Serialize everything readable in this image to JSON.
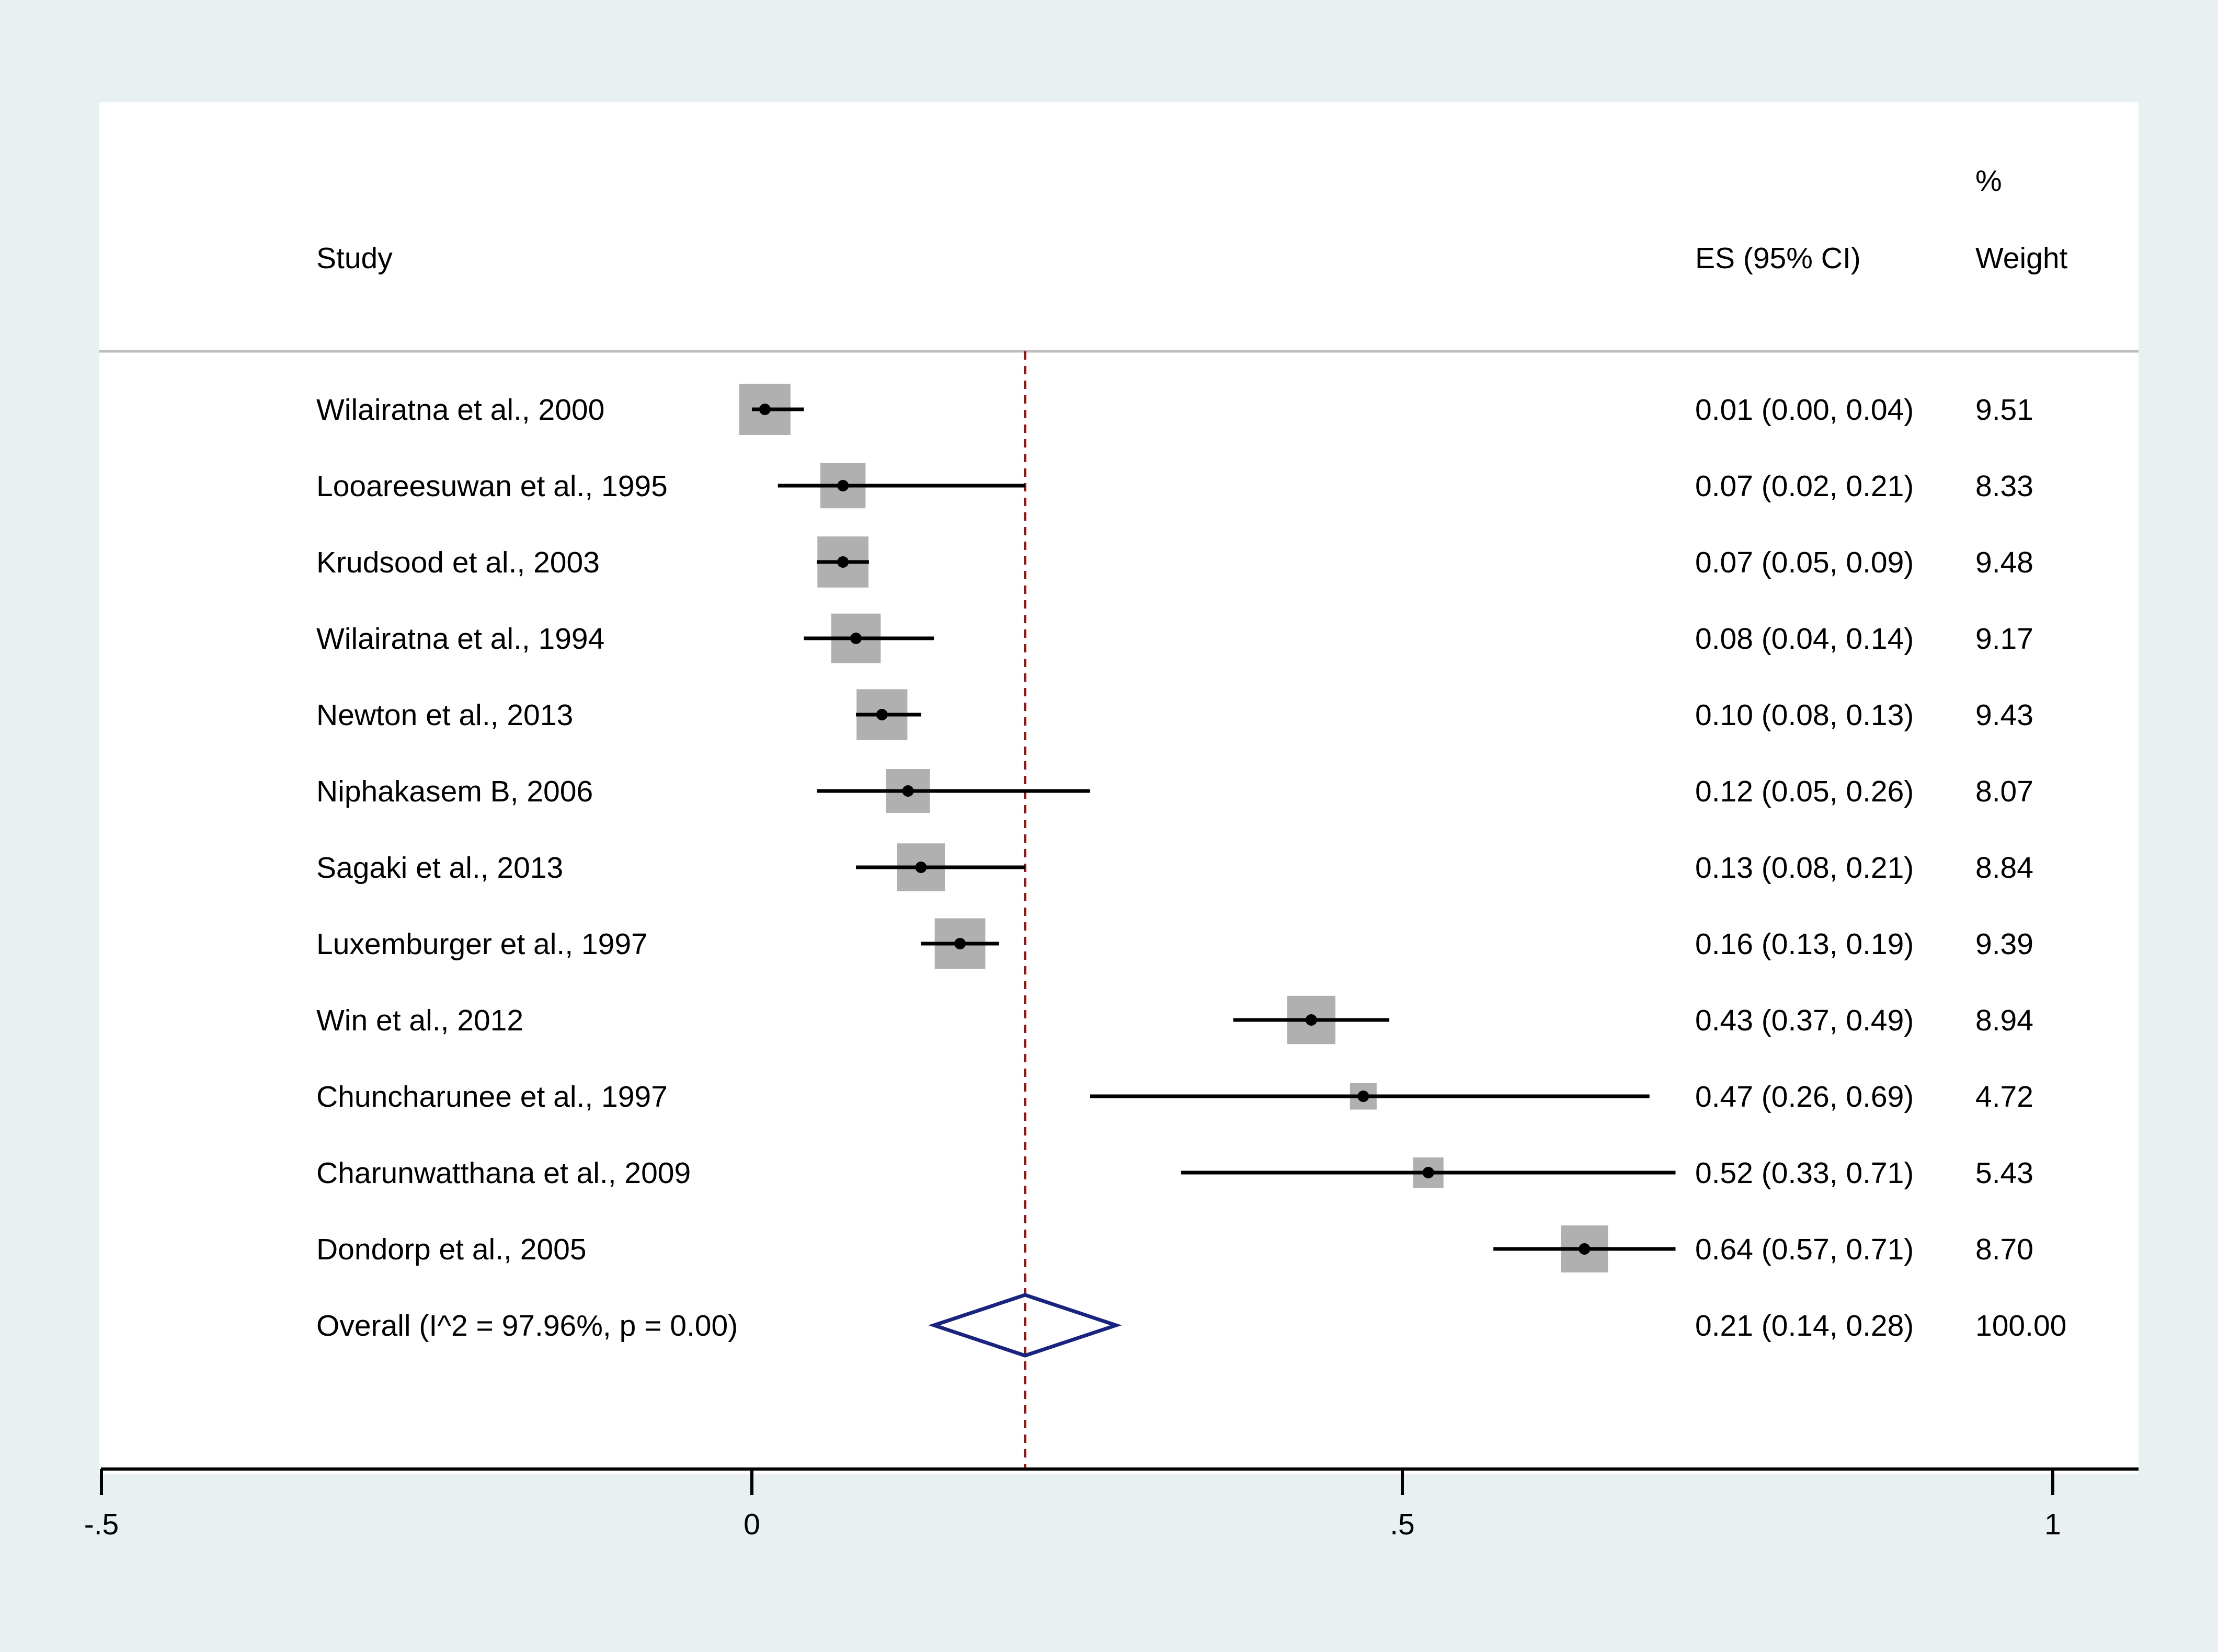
{
  "colors": {
    "outer_background": "#e8f0f2",
    "panel_background": "#ffffff",
    "ci_line": "#000000",
    "weight_box": "#b0b0b0",
    "reference_line": "#8b1a1a",
    "diamond": "#1a237e",
    "separator": "#bdbdbd"
  },
  "chart_data": {
    "type": "forest",
    "columns": {
      "study": "Study",
      "es": "ES (95% CI)",
      "weight_top": "%",
      "weight": "Weight"
    },
    "xlim": [
      -0.5,
      1.05
    ],
    "xticks": [
      {
        "value": -0.5,
        "label": "-.5"
      },
      {
        "value": 0,
        "label": "0"
      },
      {
        "value": 0.5,
        "label": ".5"
      },
      {
        "value": 1,
        "label": "1"
      }
    ],
    "reference_line": 0.21,
    "studies": [
      {
        "name": "Wilairatna et al., 2000",
        "es": 0.01,
        "lo": 0.0,
        "hi": 0.04,
        "ci_text": "0.01 (0.00, 0.04)",
        "weight": 9.51,
        "weight_text": "9.51"
      },
      {
        "name": "Looareesuwan et al., 1995",
        "es": 0.07,
        "lo": 0.02,
        "hi": 0.21,
        "ci_text": "0.07 (0.02, 0.21)",
        "weight": 8.33,
        "weight_text": "8.33"
      },
      {
        "name": "Krudsood et al., 2003",
        "es": 0.07,
        "lo": 0.05,
        "hi": 0.09,
        "ci_text": "0.07 (0.05, 0.09)",
        "weight": 9.48,
        "weight_text": "9.48"
      },
      {
        "name": "Wilairatna et al., 1994",
        "es": 0.08,
        "lo": 0.04,
        "hi": 0.14,
        "ci_text": "0.08 (0.04, 0.14)",
        "weight": 9.17,
        "weight_text": "9.17"
      },
      {
        "name": "Newton et al., 2013",
        "es": 0.1,
        "lo": 0.08,
        "hi": 0.13,
        "ci_text": "0.10 (0.08, 0.13)",
        "weight": 9.43,
        "weight_text": "9.43"
      },
      {
        "name": "Niphakasem B, 2006",
        "es": 0.12,
        "lo": 0.05,
        "hi": 0.26,
        "ci_text": "0.12 (0.05, 0.26)",
        "weight": 8.07,
        "weight_text": "8.07"
      },
      {
        "name": "Sagaki et al., 2013",
        "es": 0.13,
        "lo": 0.08,
        "hi": 0.21,
        "ci_text": "0.13 (0.08, 0.21)",
        "weight": 8.84,
        "weight_text": "8.84"
      },
      {
        "name": "Luxemburger et al., 1997",
        "es": 0.16,
        "lo": 0.13,
        "hi": 0.19,
        "ci_text": "0.16 (0.13, 0.19)",
        "weight": 9.39,
        "weight_text": "9.39"
      },
      {
        "name": "Win et al., 2012",
        "es": 0.43,
        "lo": 0.37,
        "hi": 0.49,
        "ci_text": "0.43 (0.37, 0.49)",
        "weight": 8.94,
        "weight_text": "8.94"
      },
      {
        "name": "Chuncharunee et al., 1997",
        "es": 0.47,
        "lo": 0.26,
        "hi": 0.69,
        "ci_text": "0.47 (0.26, 0.69)",
        "weight": 4.72,
        "weight_text": "4.72"
      },
      {
        "name": "Charunwatthana et al., 2009",
        "es": 0.52,
        "lo": 0.33,
        "hi": 0.71,
        "ci_text": "0.52 (0.33, 0.71)",
        "weight": 5.43,
        "weight_text": "5.43"
      },
      {
        "name": "Dondorp et al., 2005",
        "es": 0.64,
        "lo": 0.57,
        "hi": 0.71,
        "ci_text": "0.64 (0.57, 0.71)",
        "weight": 8.7,
        "weight_text": "8.70"
      }
    ],
    "overall": {
      "label": "Overall  (I^2 = 97.96%, p = 0.00)",
      "es": 0.21,
      "lo": 0.14,
      "hi": 0.28,
      "ci_text": "0.21 (0.14, 0.28)",
      "weight_text": "100.00"
    }
  }
}
